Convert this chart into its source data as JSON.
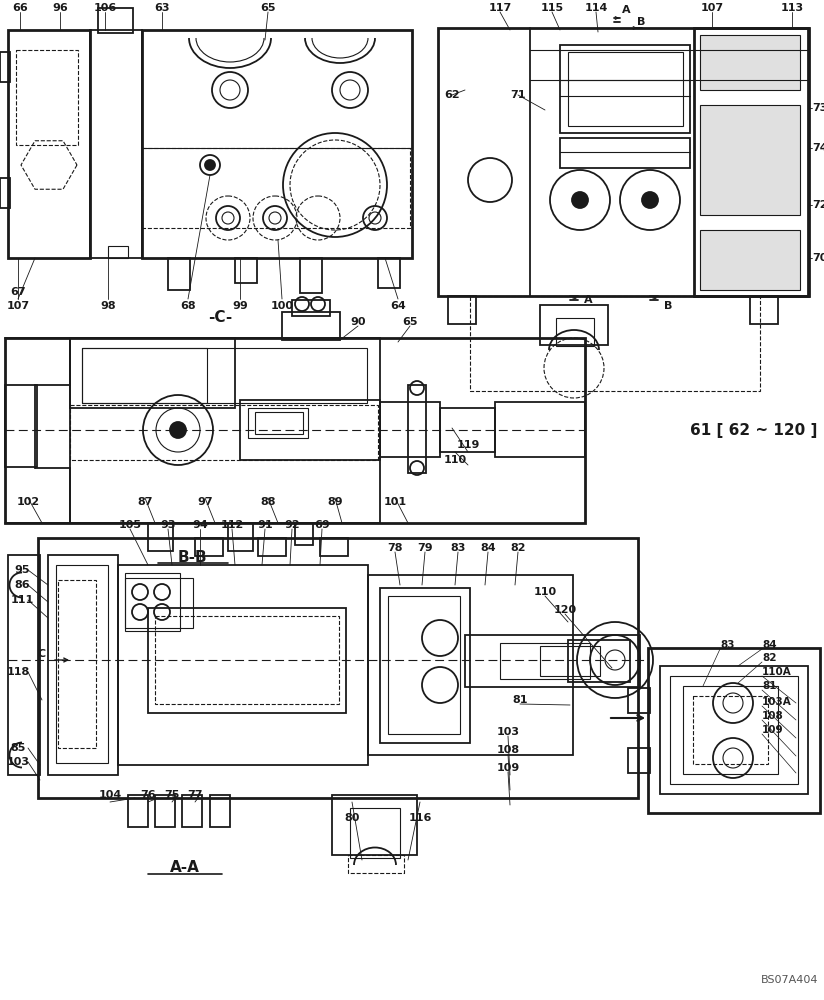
{
  "bg_color": "#ffffff",
  "lc": "#1a1a1a",
  "watermark": "BS07A404",
  "figsize": [
    8.24,
    10.0
  ],
  "dpi": 100,
  "ref_text": "61 [ 62 ~ 120 ]",
  "c_label": "-C-",
  "bb_label": "B-B",
  "aa_label": "A-A"
}
